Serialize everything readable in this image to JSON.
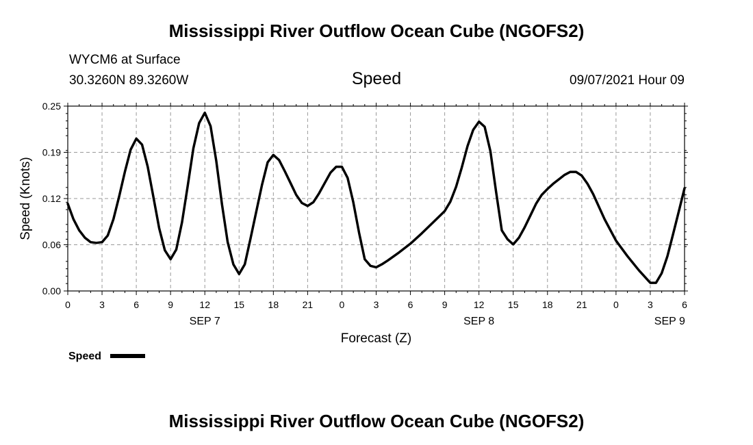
{
  "header": {
    "title": "Mississippi River Outflow Ocean Cube (NGOFS2)",
    "station": "WYCM6 at Surface",
    "coords": "30.3260N  89.3260W",
    "variable": "Speed",
    "datetime": "09/07/2021 Hour 09"
  },
  "footer": {
    "title": "Mississippi River Outflow Ocean Cube (NGOFS2)"
  },
  "colors": {
    "line": "#000000",
    "grid": "#999999",
    "background": "#ffffff"
  },
  "chart_data": {
    "type": "line",
    "xlabel": "Forecast (Z)",
    "ylabel": "Speed (Knots)",
    "x_unit": "hours (Z)",
    "xlim": [
      0,
      54
    ],
    "ylim": [
      0,
      0.25
    ],
    "y_ticks": [
      {
        "value": 0.0,
        "label": "0.00"
      },
      {
        "value": 0.0625,
        "label": "0.06"
      },
      {
        "value": 0.125,
        "label": "0.12"
      },
      {
        "value": 0.1875,
        "label": "0.19"
      },
      {
        "value": 0.25,
        "label": "0.25"
      }
    ],
    "x_ticks": [
      {
        "value": 0,
        "label": "0"
      },
      {
        "value": 3,
        "label": "3"
      },
      {
        "value": 6,
        "label": "6"
      },
      {
        "value": 9,
        "label": "9"
      },
      {
        "value": 12,
        "label": "12"
      },
      {
        "value": 15,
        "label": "15"
      },
      {
        "value": 18,
        "label": "18"
      },
      {
        "value": 21,
        "label": "21"
      },
      {
        "value": 24,
        "label": "0"
      },
      {
        "value": 27,
        "label": "3"
      },
      {
        "value": 30,
        "label": "6"
      },
      {
        "value": 33,
        "label": "9"
      },
      {
        "value": 36,
        "label": "12"
      },
      {
        "value": 39,
        "label": "15"
      },
      {
        "value": 42,
        "label": "18"
      },
      {
        "value": 45,
        "label": "21"
      },
      {
        "value": 48,
        "label": "0"
      },
      {
        "value": 51,
        "label": "3"
      },
      {
        "value": 54,
        "label": "6"
      }
    ],
    "date_labels": [
      {
        "value": 12,
        "label": "SEP 7"
      },
      {
        "value": 36,
        "label": "SEP 8"
      },
      {
        "value": 52.7,
        "label": "SEP 9"
      }
    ],
    "grid": true,
    "legend": {
      "position": "bottom-left",
      "label": "Speed"
    },
    "series": [
      {
        "name": "Speed",
        "x": [
          0,
          0.5,
          1,
          1.5,
          2,
          2.5,
          3,
          3.5,
          4,
          4.5,
          5,
          5.5,
          6,
          6.5,
          7,
          7.5,
          8,
          8.5,
          9,
          9.5,
          10,
          10.5,
          11,
          11.5,
          12,
          12.5,
          13,
          13.5,
          14,
          14.5,
          15,
          15.5,
          16,
          16.5,
          17,
          17.5,
          18,
          18.5,
          19,
          19.5,
          20,
          20.5,
          21,
          21.5,
          22,
          22.5,
          23,
          23.5,
          24,
          24.5,
          25,
          25.5,
          26,
          26.5,
          27,
          27.5,
          28,
          29,
          30,
          31,
          32,
          33,
          33.5,
          34,
          34.5,
          35,
          35.5,
          36,
          36.5,
          37,
          37.5,
          38,
          38.5,
          39,
          39.5,
          40,
          40.5,
          41,
          41.5,
          42,
          42.5,
          43,
          43.5,
          44,
          44.5,
          45,
          45.5,
          46,
          47,
          48,
          49,
          50,
          51,
          51.5,
          52,
          52.5,
          53,
          53.5,
          54
        ],
        "values": [
          0.118,
          0.097,
          0.082,
          0.072,
          0.066,
          0.065,
          0.066,
          0.075,
          0.097,
          0.128,
          0.161,
          0.191,
          0.206,
          0.198,
          0.168,
          0.127,
          0.085,
          0.055,
          0.043,
          0.056,
          0.093,
          0.142,
          0.193,
          0.227,
          0.241,
          0.223,
          0.176,
          0.117,
          0.066,
          0.036,
          0.023,
          0.036,
          0.071,
          0.107,
          0.143,
          0.174,
          0.184,
          0.177,
          0.162,
          0.146,
          0.13,
          0.119,
          0.115,
          0.12,
          0.132,
          0.146,
          0.16,
          0.168,
          0.168,
          0.153,
          0.12,
          0.079,
          0.043,
          0.034,
          0.032,
          0.036,
          0.041,
          0.052,
          0.064,
          0.078,
          0.093,
          0.108,
          0.121,
          0.141,
          0.167,
          0.196,
          0.218,
          0.229,
          0.222,
          0.189,
          0.134,
          0.082,
          0.07,
          0.063,
          0.072,
          0.086,
          0.102,
          0.118,
          0.13,
          0.138,
          0.145,
          0.151,
          0.157,
          0.161,
          0.161,
          0.156,
          0.145,
          0.131,
          0.097,
          0.068,
          0.047,
          0.028,
          0.011,
          0.011,
          0.024,
          0.047,
          0.077,
          0.108,
          0.139
        ]
      }
    ]
  }
}
